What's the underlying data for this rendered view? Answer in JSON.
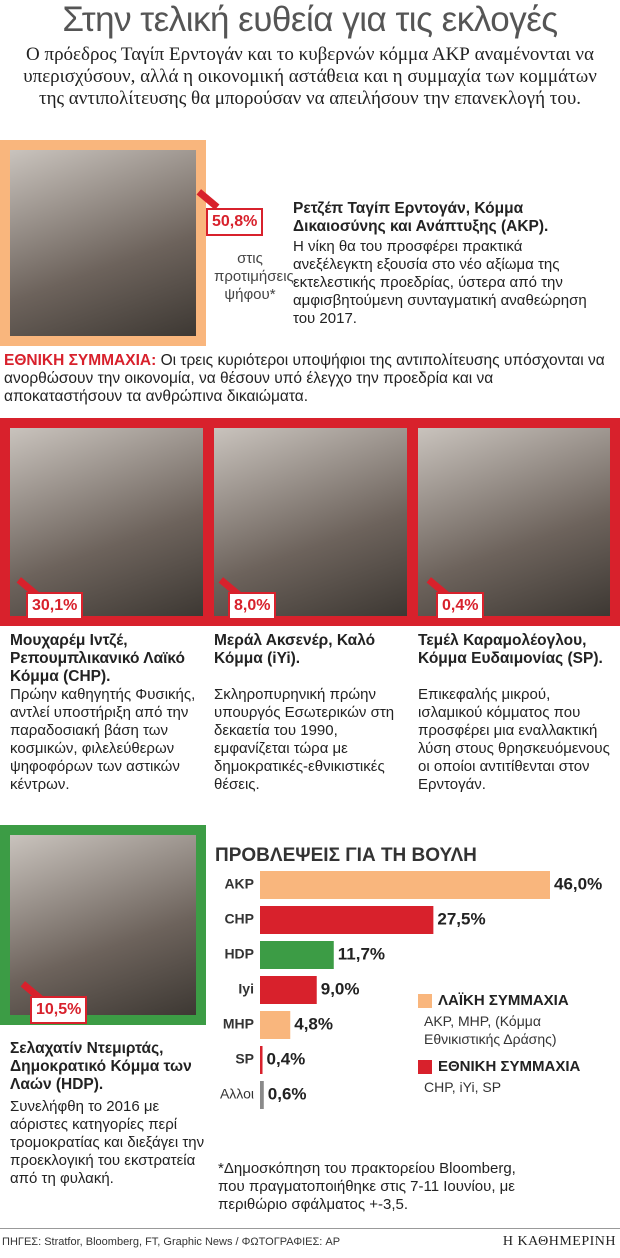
{
  "header": {
    "title": "Στην τελική ευθεία για τις εκλογές",
    "subtitle": "Ο πρόεδρος Ταγίπ Ερντογάν και το κυβερνών κόμμα ΑΚΡ αναμένονται να υπερισχύσουν, αλλά η οικονομική αστάθεια και η συμμαχία των κομμάτων της αντιπολίτευσης θα μπορούσαν να απειλήσουν την επανεκλογή του."
  },
  "akp_candidate": {
    "percent": "50,8%",
    "percent_note": "στις προτιμήσεις ψήφου*",
    "name": "Ρετζέπ Ταγίπ Ερντογάν, Κόμμα Δικαιοσύνης και Ανάπτυξης (AKP).",
    "description": "Η νίκη θα του προσφέρει πρακτικά ανεξέλεγκτη εξουσία στο νέο αξίωμα της εκτελεστικής προεδρίας, ύστερα από την αμφισβητούμενη συνταγματική αναθεώρηση του 2017."
  },
  "alliance": {
    "label": "ΕΘΝΙΚΗ ΣΥΜΜΑΧΙΑ:",
    "text": "Οι τρεις κυριότεροι υποψήφιοι της αντιπολίτευσης υπόσχονται να ανορθώσουν την οικονομία, να θέσουν υπό έλεγχο την προεδρία και να αποκαταστήσουν τα ανθρώπινα δικαιώματα."
  },
  "opposition": [
    {
      "percent": "30,1%",
      "name": "Μουχαρέμ Ιντζέ, Ρεπουμπλικανικό Λαϊκό Κόμμα (CHP).",
      "description": "Πρώην καθηγητής Φυσικής, αντλεί υποστήριξη από την παραδοσιακή βάση των κοσμικών, φιλελεύθερων ψηφοφόρων των αστικών κέντρων."
    },
    {
      "percent": "8,0%",
      "name": "Μεράλ Ακσενέρ, Καλό Κόμμα (iYi).",
      "description": "Σκληροπυρηνική πρώην υπουργός Εσωτερικών στη δεκαετία του 1990, εμφανίζεται τώρα με δημοκρατικές-εθνικιστικές θέσεις."
    },
    {
      "percent": "0,4%",
      "name": "Τεμέλ Καραμολέογλου, Κόμμα Ευδαιμονίας (SP).",
      "description": "Επικεφαλής μικρού, ισλαμικού κόμματος που προσφέρει μια εναλλακτική λύση στους θρησκευόμενους οι οποίοι αντιτίθενται στον Ερντογάν."
    }
  ],
  "hdp_candidate": {
    "percent": "10,5%",
    "name": "Σελαχατίν Ντεμιρτάς, Δημοκρατικό Κόμμα των Λαών (HDP).",
    "description": "Συνελήφθη το 2016 με αόριστες κατηγορίες περί τρομοκρατίας και διεξάγει την προεκλογική του εκστρατεία από τη φυλακή."
  },
  "chart_data": {
    "type": "bar",
    "orientation": "horizontal",
    "title": "ΠΡΟΒΛΕΨΕΙΣ ΓΙΑ ΤΗ ΒΟΥΛΗ",
    "categories": [
      "AKP",
      "CHP",
      "HDP",
      "Iyi",
      "MHP",
      "SP",
      "Αλλοι"
    ],
    "values": [
      46.0,
      27.5,
      11.7,
      9.0,
      4.8,
      0.4,
      0.6
    ],
    "value_labels": [
      "46,0%",
      "27,5%",
      "11,7%",
      "9,0%",
      "4,8%",
      "0,4%",
      "0,6%"
    ],
    "colors": [
      "#f9b67d",
      "#d8212c",
      "#3c9c45",
      "#d8212c",
      "#f9b67d",
      "#d8212c",
      "#8a8a8a"
    ],
    "legend": [
      {
        "name": "ΛΑΪΚΗ ΣΥΜΜΑΧΙΑ",
        "members": "ΑΚΡ, ΜΗΡ, (Κόμμα Εθνικιστικής Δράσης)",
        "color": "#f9b67d"
      },
      {
        "name": "ΕΘΝΙΚΗ ΣΥΜΜΑΧΙΑ",
        "members": "CHP, iYi, SP",
        "color": "#d8212c"
      }
    ]
  },
  "footnote": "*Δημοσκόπηση του πρακτορείου Bloomberg, που πραγματοποιήθηκε στις 7-11 Ιουνίου, με περιθώριο σφάλματος +-3,5.",
  "sources": "ΠΗΓΕΣ: Stratfor, Bloomberg, FT, Graphic News / ΦΩΤΟΓΡΑΦΙΕΣ: AP",
  "logo": "Η ΚΑΘΗΜΕΡΙΝΗ"
}
